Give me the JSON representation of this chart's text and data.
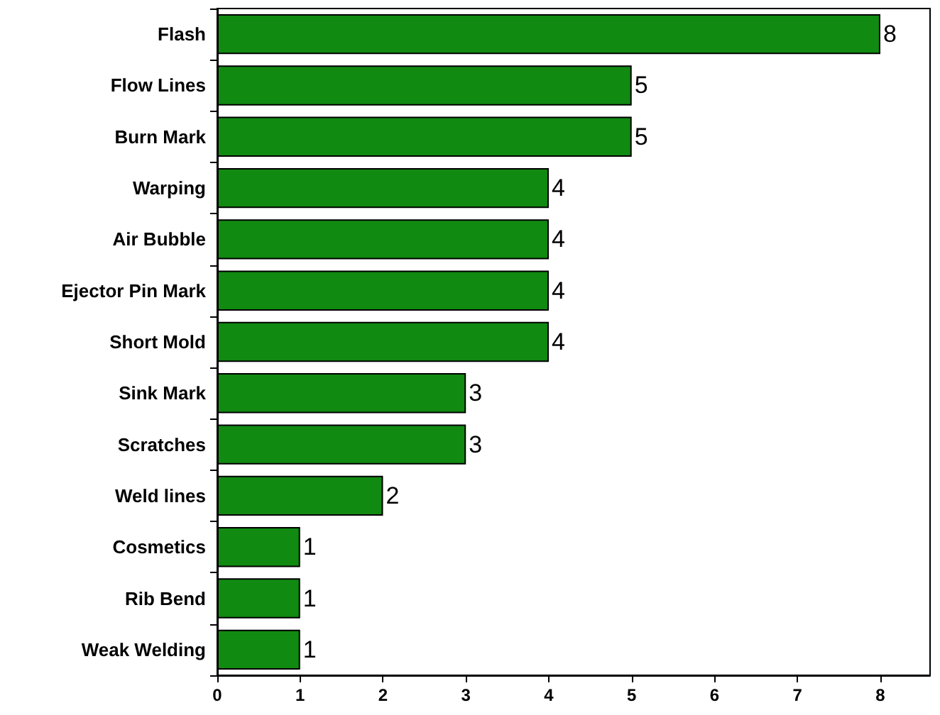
{
  "chart_data": {
    "type": "bar",
    "orientation": "horizontal",
    "categories": [
      "Flash",
      "Flow Lines",
      "Burn Mark",
      "Warping",
      "Air Bubble",
      "Ejector Pin Mark",
      "Short Mold",
      "Sink Mark",
      "Scratches",
      "Weld lines",
      "Cosmetics",
      "Rib Bend",
      "Weak Welding"
    ],
    "values": [
      8,
      5,
      5,
      4,
      4,
      4,
      4,
      3,
      3,
      2,
      1,
      1,
      1
    ],
    "color": "#118a11",
    "xlim": [
      0,
      8.6
    ],
    "xticks": [
      0,
      1,
      2,
      3,
      4,
      5,
      6,
      7,
      8
    ],
    "data_labels": true,
    "grid": false
  }
}
